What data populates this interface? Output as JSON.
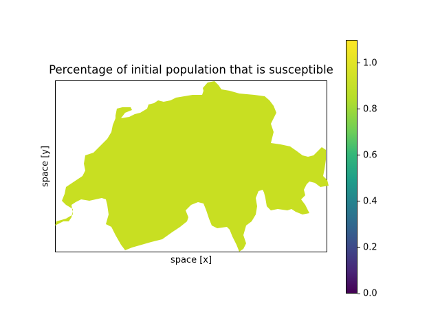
{
  "plot": {
    "title": "Percentage of initial population that is susceptible",
    "xlabel": "space [x]",
    "ylabel": "space [y]",
    "region_fill": "#c8df22",
    "region_value": 0.95
  },
  "colorbar": {
    "colormap": "viridis",
    "range": [
      0.0,
      1.1
    ],
    "ticks": [
      "0.0",
      "0.2",
      "0.4",
      "0.6",
      "0.8",
      "1.0"
    ]
  }
}
